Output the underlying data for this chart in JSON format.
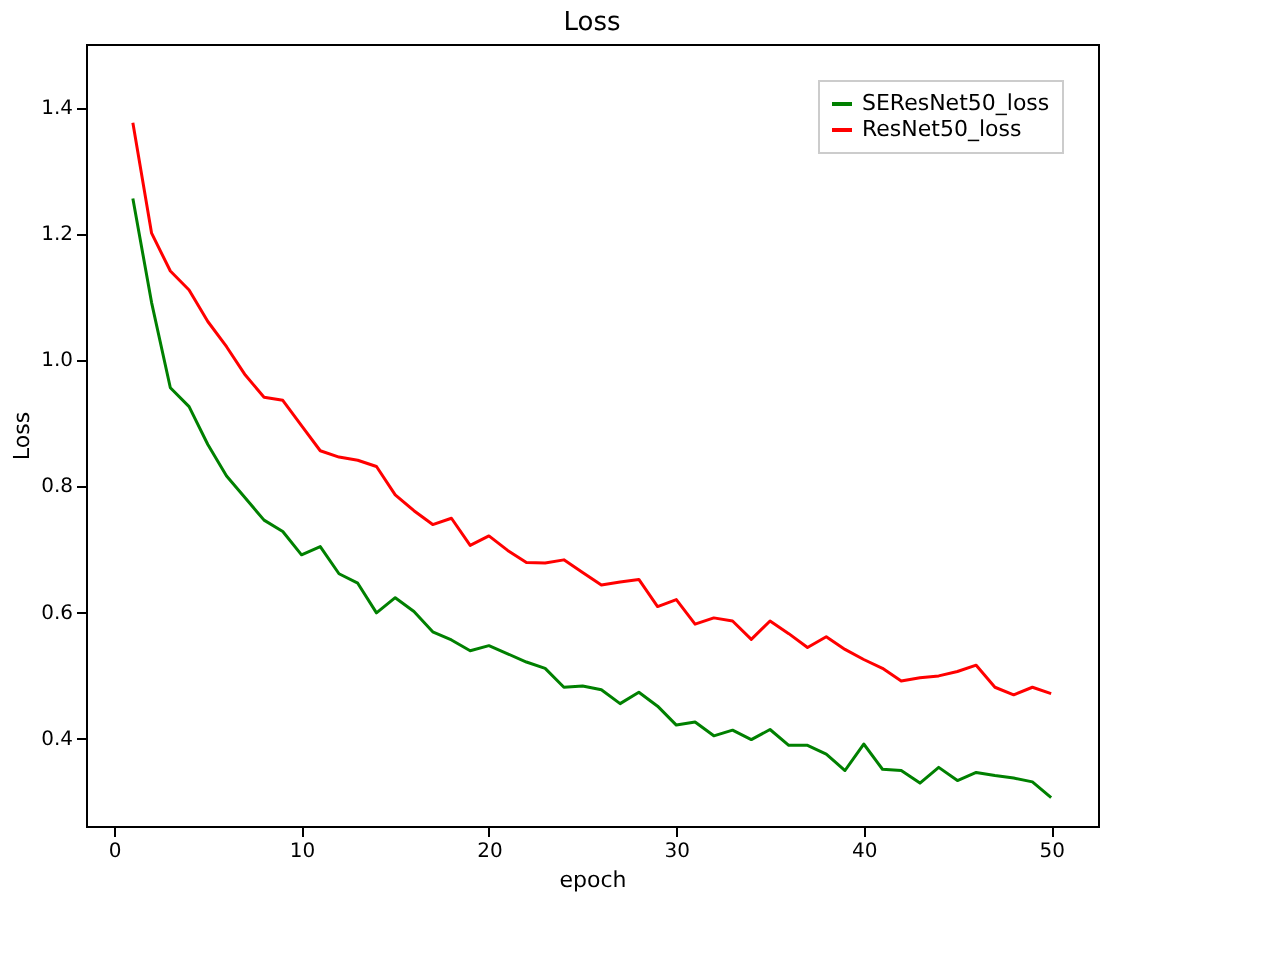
{
  "chart_data": {
    "type": "line",
    "title": "Loss",
    "xlabel": "epoch",
    "ylabel": "Loss",
    "x": [
      1,
      2,
      3,
      4,
      5,
      6,
      7,
      8,
      9,
      10,
      11,
      12,
      13,
      14,
      15,
      16,
      17,
      18,
      19,
      20,
      21,
      22,
      23,
      24,
      25,
      26,
      27,
      28,
      29,
      30,
      31,
      32,
      33,
      34,
      35,
      36,
      37,
      38,
      39,
      40,
      41,
      42,
      43,
      44,
      45,
      46,
      47,
      48,
      49,
      50
    ],
    "series": [
      {
        "name": "SEResNet50_loss",
        "color": "#008000",
        "values": [
          1.255,
          1.09,
          0.955,
          0.925,
          0.865,
          0.815,
          0.78,
          0.745,
          0.727,
          0.69,
          0.703,
          0.66,
          0.645,
          0.598,
          0.622,
          0.6,
          0.568,
          0.555,
          0.538,
          0.546,
          0.533,
          0.52,
          0.51,
          0.48,
          0.482,
          0.476,
          0.454,
          0.472,
          0.45,
          0.42,
          0.425,
          0.403,
          0.412,
          0.397,
          0.413,
          0.388,
          0.388,
          0.374,
          0.348,
          0.39,
          0.35,
          0.348,
          0.328,
          0.353,
          0.332,
          0.345,
          0.34,
          0.336,
          0.33,
          0.305
        ]
      },
      {
        "name": "ResNet50_loss",
        "color": "#ff0000",
        "values": [
          1.375,
          1.2,
          1.14,
          1.11,
          1.06,
          1.02,
          0.975,
          0.94,
          0.935,
          0.895,
          0.855,
          0.845,
          0.84,
          0.83,
          0.785,
          0.76,
          0.738,
          0.748,
          0.705,
          0.72,
          0.697,
          0.678,
          0.677,
          0.682,
          0.662,
          0.642,
          0.647,
          0.651,
          0.608,
          0.619,
          0.58,
          0.59,
          0.585,
          0.556,
          0.585,
          0.565,
          0.543,
          0.56,
          0.54,
          0.524,
          0.51,
          0.49,
          0.495,
          0.498,
          0.505,
          0.515,
          0.48,
          0.468,
          0.48,
          0.47
        ]
      }
    ],
    "xlim": [
      -1.5,
      52.5
    ],
    "ylim": [
      0.26,
      1.5
    ],
    "xticks": [
      0,
      10,
      20,
      30,
      40,
      50
    ],
    "yticks": [
      0.4,
      0.6,
      0.8,
      {
        "value": 1,
        "label": "1.0"
      },
      1.2,
      1.4
    ],
    "legend": "top right",
    "grid": false
  }
}
